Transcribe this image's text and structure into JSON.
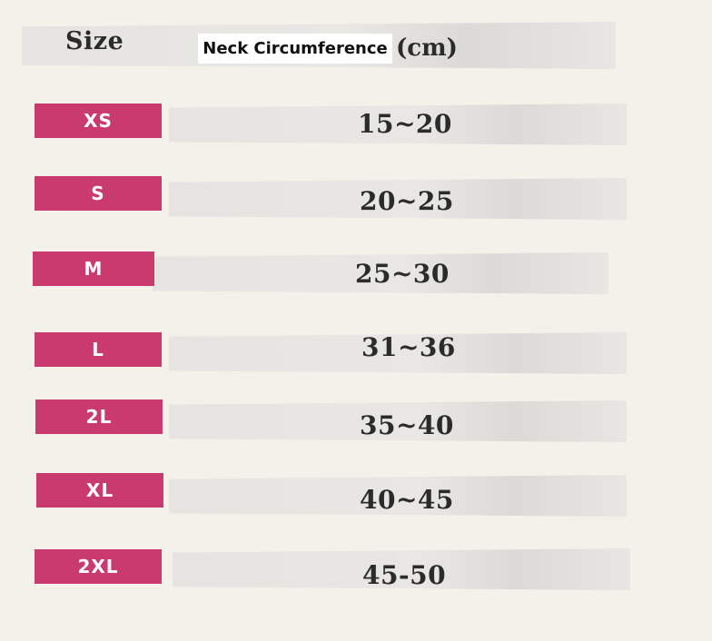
{
  "header": {
    "size_label": "Size",
    "neck_label": "Neck Circumference",
    "unit_label": "(cm)"
  },
  "rows": [
    {
      "size": "XS",
      "range": "15~20"
    },
    {
      "size": "S",
      "range": "20~25"
    },
    {
      "size": "M",
      "range": "25~30"
    },
    {
      "size": "L",
      "range": "31~36"
    },
    {
      "size": "2L",
      "range": "35~40"
    },
    {
      "size": "XL",
      "range": "40~45"
    },
    {
      "size": "2XL",
      "range": "45-50"
    }
  ],
  "colors": {
    "background": "#f4f1ea",
    "tag": "#c93a6e",
    "tape": "#e6e4e1",
    "text": "#2b2b2b"
  }
}
